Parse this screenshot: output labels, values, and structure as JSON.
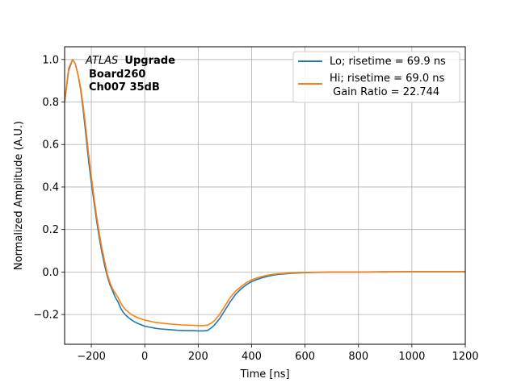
{
  "chart_data": {
    "type": "line",
    "xlabel": "Time [ns]",
    "ylabel": "Normalized Amplitude (A.U.)",
    "xlim": [
      -300,
      1200
    ],
    "ylim": [
      -0.34,
      1.06
    ],
    "xticks": [
      -200,
      0,
      200,
      400,
      600,
      800,
      1000,
      1200
    ],
    "xtick_labels": [
      "−200",
      "0",
      "200",
      "400",
      "600",
      "800",
      "1000",
      "1200"
    ],
    "yticks": [
      -0.2,
      0.0,
      0.2,
      0.4,
      0.6,
      0.8,
      1.0
    ],
    "ytick_labels": [
      "−0.2",
      "0.0",
      "0.2",
      "0.4",
      "0.6",
      "0.8",
      "1.0"
    ],
    "grid": true,
    "legend_position": "top-right",
    "annotation": {
      "line1_italic": "ATLAS",
      "line1_bold": "Upgrade",
      "line2": "Board260",
      "line3": "Ch007 35dB"
    },
    "series": [
      {
        "name": "Lo; risetime = 69.9 ns",
        "color": "#1f77b4",
        "x": [
          -300,
          -285,
          -270,
          -260,
          -250,
          -240,
          -230,
          -220,
          -210,
          -200,
          -190,
          -180,
          -170,
          -160,
          -150,
          -140,
          -130,
          -120,
          -110,
          -100,
          -90,
          -80,
          -70,
          -60,
          -50,
          -40,
          -30,
          -20,
          -10,
          0,
          20,
          40,
          60,
          80,
          100,
          120,
          140,
          160,
          180,
          200,
          220,
          235,
          250,
          260,
          280,
          300,
          320,
          340,
          360,
          380,
          400,
          420,
          440,
          460,
          480,
          500,
          550,
          600,
          700,
          800,
          900,
          1000,
          1100,
          1200
        ],
        "y": [
          0.8,
          0.95,
          1.0,
          0.98,
          0.93,
          0.86,
          0.76,
          0.64,
          0.52,
          0.42,
          0.33,
          0.24,
          0.16,
          0.09,
          0.03,
          -0.02,
          -0.06,
          -0.09,
          -0.12,
          -0.14,
          -0.17,
          -0.19,
          -0.205,
          -0.215,
          -0.225,
          -0.233,
          -0.24,
          -0.245,
          -0.25,
          -0.255,
          -0.26,
          -0.265,
          -0.268,
          -0.27,
          -0.272,
          -0.274,
          -0.275,
          -0.276,
          -0.276,
          -0.277,
          -0.277,
          -0.275,
          -0.262,
          -0.25,
          -0.22,
          -0.18,
          -0.14,
          -0.105,
          -0.08,
          -0.06,
          -0.045,
          -0.035,
          -0.027,
          -0.02,
          -0.015,
          -0.011,
          -0.006,
          -0.003,
          0.0,
          0.0,
          0.001,
          0.002,
          0.002,
          0.002
        ]
      },
      {
        "name": "Hi; risetime = 69.0 ns",
        "color": "#ff7f0e",
        "x": [
          -300,
          -285,
          -270,
          -260,
          -250,
          -240,
          -230,
          -220,
          -210,
          -200,
          -190,
          -180,
          -170,
          -160,
          -150,
          -140,
          -130,
          -120,
          -110,
          -100,
          -90,
          -80,
          -70,
          -60,
          -50,
          -40,
          -30,
          -20,
          -10,
          0,
          20,
          40,
          60,
          80,
          100,
          120,
          140,
          160,
          180,
          200,
          220,
          235,
          250,
          260,
          280,
          300,
          320,
          340,
          360,
          380,
          400,
          420,
          440,
          460,
          480,
          500,
          550,
          600,
          700,
          800,
          900,
          1000,
          1100,
          1200
        ],
        "y": [
          0.8,
          0.96,
          1.0,
          0.98,
          0.93,
          0.87,
          0.78,
          0.67,
          0.55,
          0.45,
          0.35,
          0.26,
          0.18,
          0.11,
          0.05,
          -0.01,
          -0.05,
          -0.08,
          -0.1,
          -0.12,
          -0.145,
          -0.165,
          -0.18,
          -0.19,
          -0.2,
          -0.207,
          -0.213,
          -0.218,
          -0.222,
          -0.226,
          -0.232,
          -0.237,
          -0.24,
          -0.243,
          -0.245,
          -0.247,
          -0.249,
          -0.25,
          -0.251,
          -0.252,
          -0.252,
          -0.25,
          -0.24,
          -0.23,
          -0.2,
          -0.16,
          -0.12,
          -0.09,
          -0.07,
          -0.05,
          -0.037,
          -0.028,
          -0.021,
          -0.015,
          -0.011,
          -0.008,
          -0.004,
          -0.002,
          0.0,
          0.0,
          0.0,
          0.001,
          0.001,
          0.001
        ]
      }
    ],
    "legend_extra": " Gain Ratio = 22.744"
  }
}
